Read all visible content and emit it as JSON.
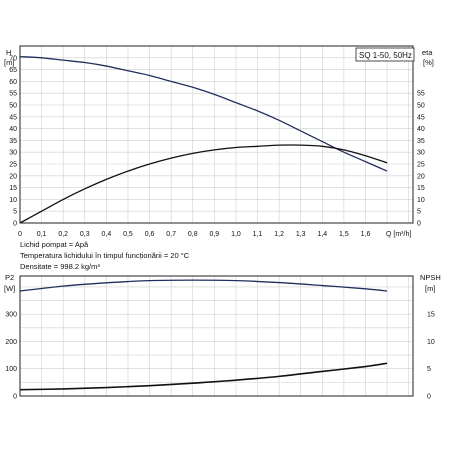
{
  "chart_data": [
    {
      "type": "line",
      "title": "SQ 1-50, 50Hz",
      "xlabel": "Q [m³/h]",
      "left_axis": {
        "label": "H",
        "unit": "[m]",
        "ylim": [
          0,
          75
        ],
        "ticks": [
          0,
          5,
          10,
          15,
          20,
          25,
          30,
          35,
          40,
          45,
          50,
          55,
          60,
          65,
          70
        ]
      },
      "right_axis": {
        "label": "eta",
        "unit": "[%]",
        "ylim": [
          0,
          75
        ],
        "ticks": [
          0,
          5,
          10,
          15,
          20,
          25,
          30,
          35,
          40,
          45,
          50,
          55
        ]
      },
      "xlim": [
        0,
        1.82
      ],
      "x_ticks": [
        0,
        0.1,
        0.2,
        0.3,
        0.4,
        0.5,
        0.6,
        0.7,
        0.8,
        0.9,
        1.0,
        1.1,
        1.2,
        1.3,
        1.4,
        1.5,
        1.6
      ],
      "x_tick_labels": [
        "0",
        "0,1",
        "0,2",
        "0,3",
        "0,4",
        "0,5",
        "0,6",
        "0,7",
        "0,8",
        "0,9",
        "1,0",
        "1,1",
        "1,2",
        "1,3",
        "1,4",
        "1,5",
        "1,6"
      ],
      "grid": true,
      "series": [
        {
          "axis": "left",
          "color": "#1f2f5e",
          "x": [
            0,
            0.1,
            0.2,
            0.3,
            0.4,
            0.5,
            0.6,
            0.7,
            0.8,
            0.9,
            1.0,
            1.1,
            1.2,
            1.3,
            1.4,
            1.5,
            1.6,
            1.7
          ],
          "y": [
            70.5,
            70,
            69,
            68,
            66.5,
            64.5,
            62.5,
            60,
            57.5,
            54.5,
            51,
            47.5,
            43.5,
            39,
            34.5,
            30,
            26,
            22
          ]
        },
        {
          "axis": "right",
          "color": "#111111",
          "x": [
            0,
            0.1,
            0.2,
            0.3,
            0.4,
            0.5,
            0.6,
            0.7,
            0.8,
            0.9,
            1.0,
            1.1,
            1.2,
            1.3,
            1.4,
            1.5,
            1.6,
            1.7
          ],
          "y": [
            0,
            5,
            10,
            14.5,
            18.5,
            22,
            25,
            27.5,
            29.5,
            31,
            32,
            32.5,
            33,
            33,
            32.5,
            31,
            28.5,
            25.5
          ]
        }
      ]
    },
    {
      "type": "line",
      "left_axis": {
        "label": "P2",
        "unit": "[W]",
        "ylim": [
          0,
          440
        ],
        "ticks": [
          0,
          100,
          200,
          300
        ]
      },
      "right_axis": {
        "label": "NPSH",
        "unit": "[m]",
        "ylim": [
          0,
          22
        ],
        "ticks": [
          0,
          5,
          10,
          15
        ]
      },
      "xlim": [
        0,
        1.82
      ],
      "grid": true,
      "series": [
        {
          "axis": "left",
          "color": "#1f2f5e",
          "x": [
            0,
            0.2,
            0.4,
            0.6,
            0.8,
            1.0,
            1.2,
            1.4,
            1.6,
            1.7
          ],
          "y": [
            385,
            403,
            415,
            423,
            425,
            423,
            416,
            405,
            393,
            385
          ]
        },
        {
          "axis": "right",
          "color": "#111111",
          "x": [
            0,
            0.2,
            0.4,
            0.6,
            0.8,
            1.0,
            1.2,
            1.4,
            1.6,
            1.7
          ],
          "y": [
            1.15,
            1.3,
            1.55,
            1.9,
            2.35,
            2.9,
            3.6,
            4.5,
            5.4,
            6.0
          ]
        }
      ]
    }
  ],
  "info": {
    "line1": "Lichid pompat = Apă",
    "line2": "Temperatura lichidului în timpul funcționării = 20 °C",
    "line3": "Densitate = 998.2 kg/m³"
  }
}
